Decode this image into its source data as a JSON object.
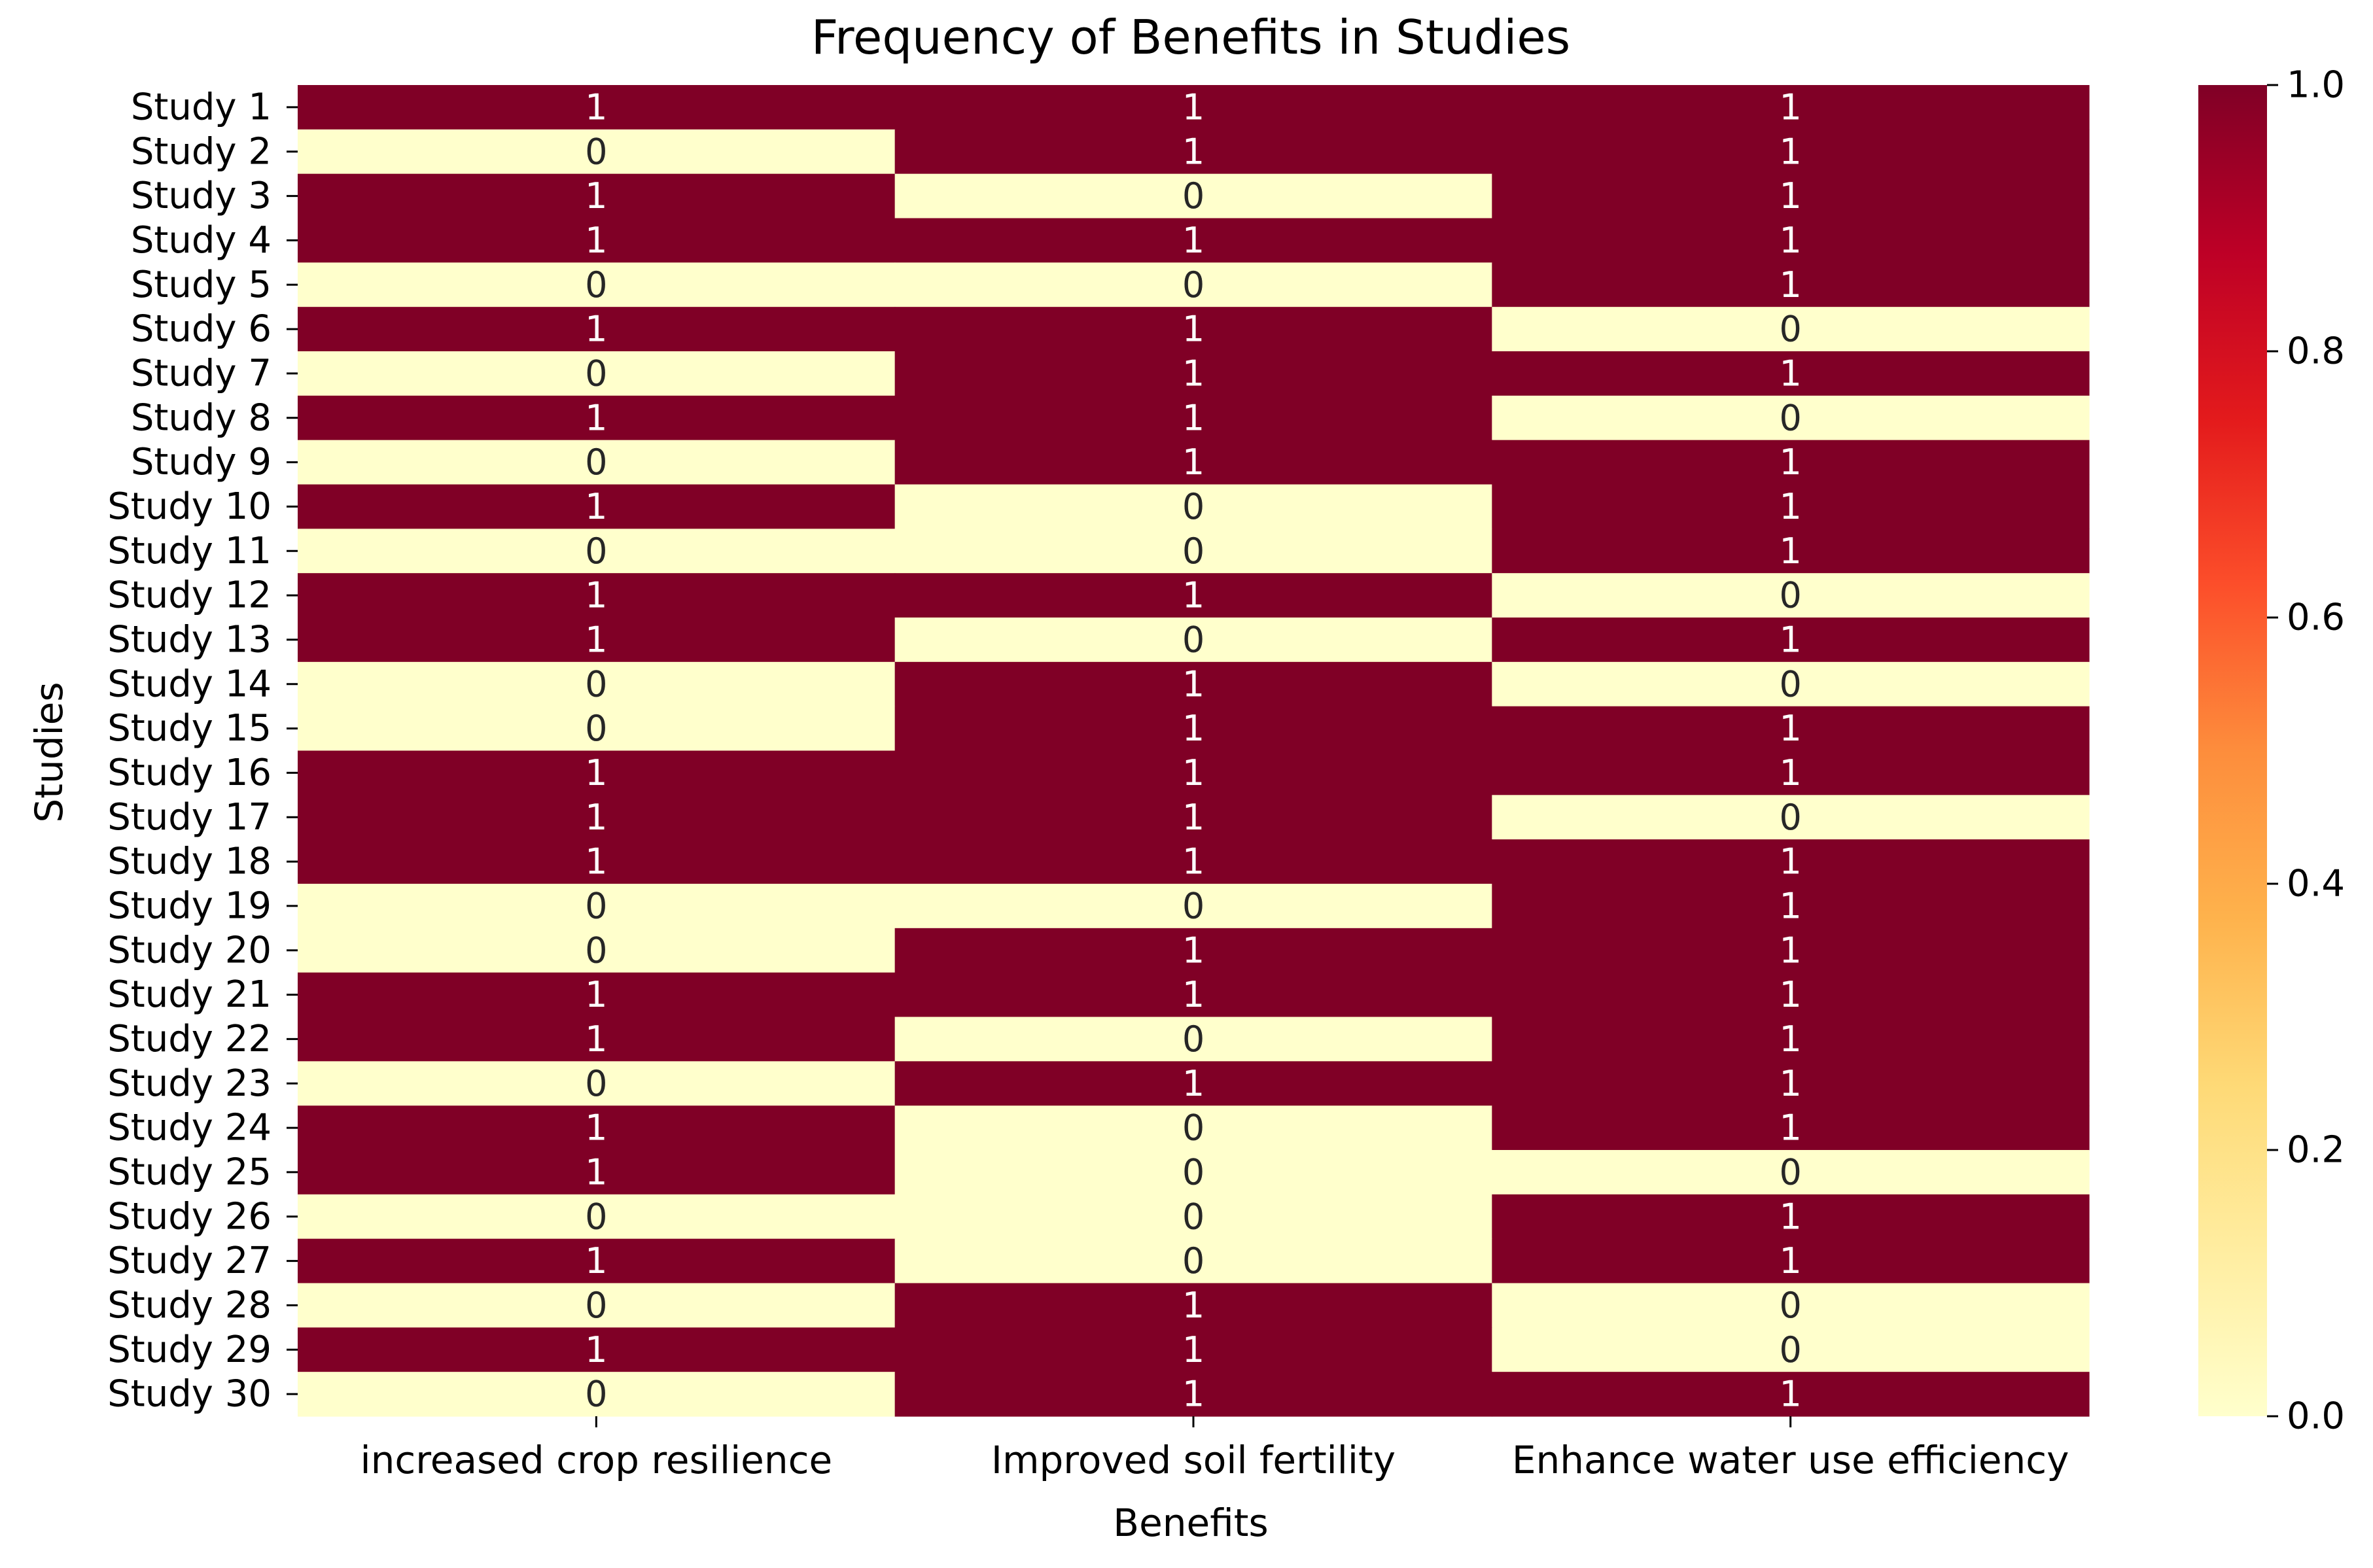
{
  "chart_data": {
    "type": "heatmap",
    "title": "Frequency of Benefits in Studies",
    "xlabel": "Benefits",
    "ylabel": "Studies",
    "columns": [
      "increased crop resilience",
      "Improved soil fertility",
      "Enhance water use efficiency"
    ],
    "rows": [
      "Study 1",
      "Study 2",
      "Study 3",
      "Study 4",
      "Study 5",
      "Study 6",
      "Study 7",
      "Study 8",
      "Study 9",
      "Study 10",
      "Study 11",
      "Study 12",
      "Study 13",
      "Study 14",
      "Study 15",
      "Study 16",
      "Study 17",
      "Study 18",
      "Study 19",
      "Study 20",
      "Study 21",
      "Study 22",
      "Study 23",
      "Study 24",
      "Study 25",
      "Study 26",
      "Study 27",
      "Study 28",
      "Study 29",
      "Study 30"
    ],
    "values": [
      [
        1,
        1,
        1
      ],
      [
        0,
        1,
        1
      ],
      [
        1,
        0,
        1
      ],
      [
        1,
        1,
        1
      ],
      [
        0,
        0,
        1
      ],
      [
        1,
        1,
        0
      ],
      [
        0,
        1,
        1
      ],
      [
        1,
        1,
        0
      ],
      [
        0,
        1,
        1
      ],
      [
        1,
        0,
        1
      ],
      [
        0,
        0,
        1
      ],
      [
        1,
        1,
        0
      ],
      [
        1,
        0,
        1
      ],
      [
        0,
        1,
        0
      ],
      [
        0,
        1,
        1
      ],
      [
        1,
        1,
        1
      ],
      [
        1,
        1,
        0
      ],
      [
        1,
        1,
        1
      ],
      [
        0,
        0,
        1
      ],
      [
        0,
        1,
        1
      ],
      [
        1,
        1,
        1
      ],
      [
        1,
        0,
        1
      ],
      [
        0,
        1,
        1
      ],
      [
        1,
        0,
        1
      ],
      [
        1,
        0,
        0
      ],
      [
        0,
        0,
        1
      ],
      [
        1,
        0,
        1
      ],
      [
        0,
        1,
        0
      ],
      [
        1,
        1,
        0
      ],
      [
        0,
        1,
        1
      ]
    ],
    "colormap": "YlOrRd",
    "color_low": "#ffffcc",
    "color_high": "#800026",
    "vmin": 0.0,
    "vmax": 1.0,
    "colorbar_ticks": [
      "0.0",
      "0.2",
      "0.4",
      "0.6",
      "0.8",
      "1.0"
    ],
    "annotation_color_on_dark": "#ffffff",
    "annotation_color_on_light": "#262626"
  }
}
